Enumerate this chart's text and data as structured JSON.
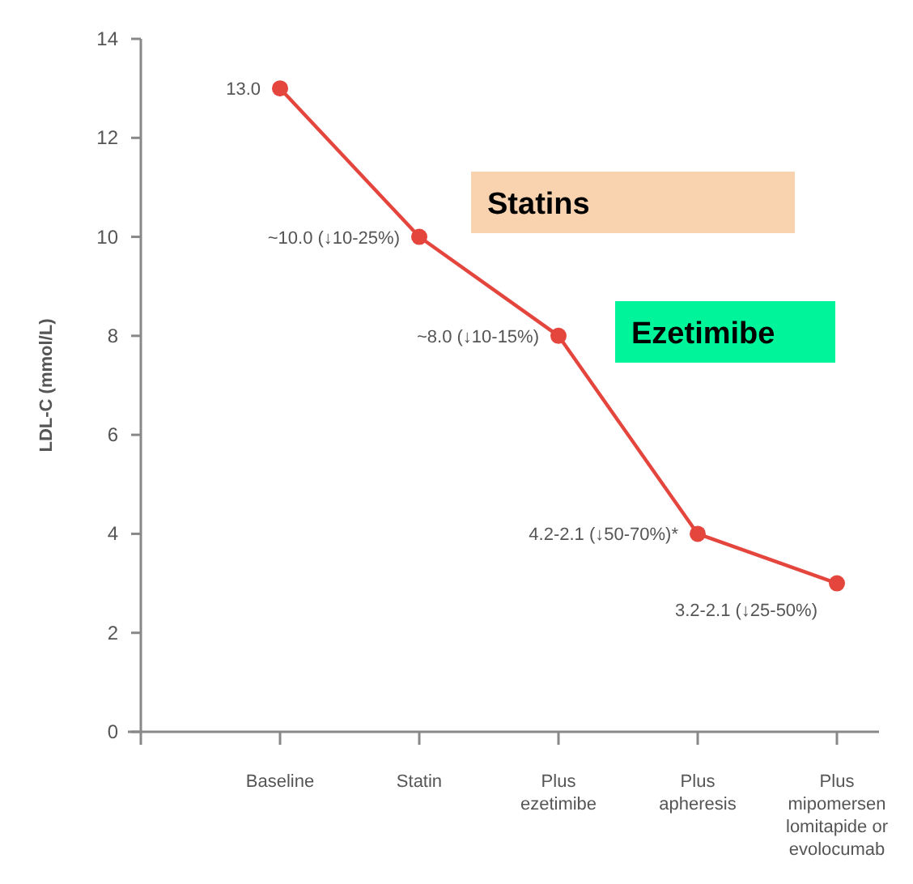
{
  "chart_data": {
    "type": "line",
    "ylabel": "LDL-C (mmol/L)",
    "categories": [
      "Baseline",
      "Statin",
      "Plus\nezetimibe",
      "Plus\napheresis",
      "Plus\nmipomersen\nlomitapide or\nevolocumab"
    ],
    "series": [
      {
        "color": "#e4463e",
        "values": [
          13.0,
          10.0,
          8.0,
          4.0,
          3.0
        ],
        "value_labels": [
          "13.0",
          "~10.0 (↓10-25%)",
          "~8.0 (↓10-15%)",
          null,
          null
        ]
      }
    ],
    "ylim": [
      0,
      14
    ],
    "yticks": [
      0,
      2,
      4,
      6,
      8,
      10,
      12,
      14
    ],
    "marker": "circle",
    "line_style": "solid",
    "grid": false,
    "annotations": [
      "Statins",
      "Ezetimibe",
      {
        "text": "4.2-2.1 (↓50-70%)*",
        "x": "Plus\napheresis",
        "y": 4.0
      },
      {
        "text": "3.2-2.1 (↓25-50%)",
        "x": "Plus\nmipomersen\nlomitapide or\nevolocumab",
        "y": 3.0
      }
    ]
  }
}
